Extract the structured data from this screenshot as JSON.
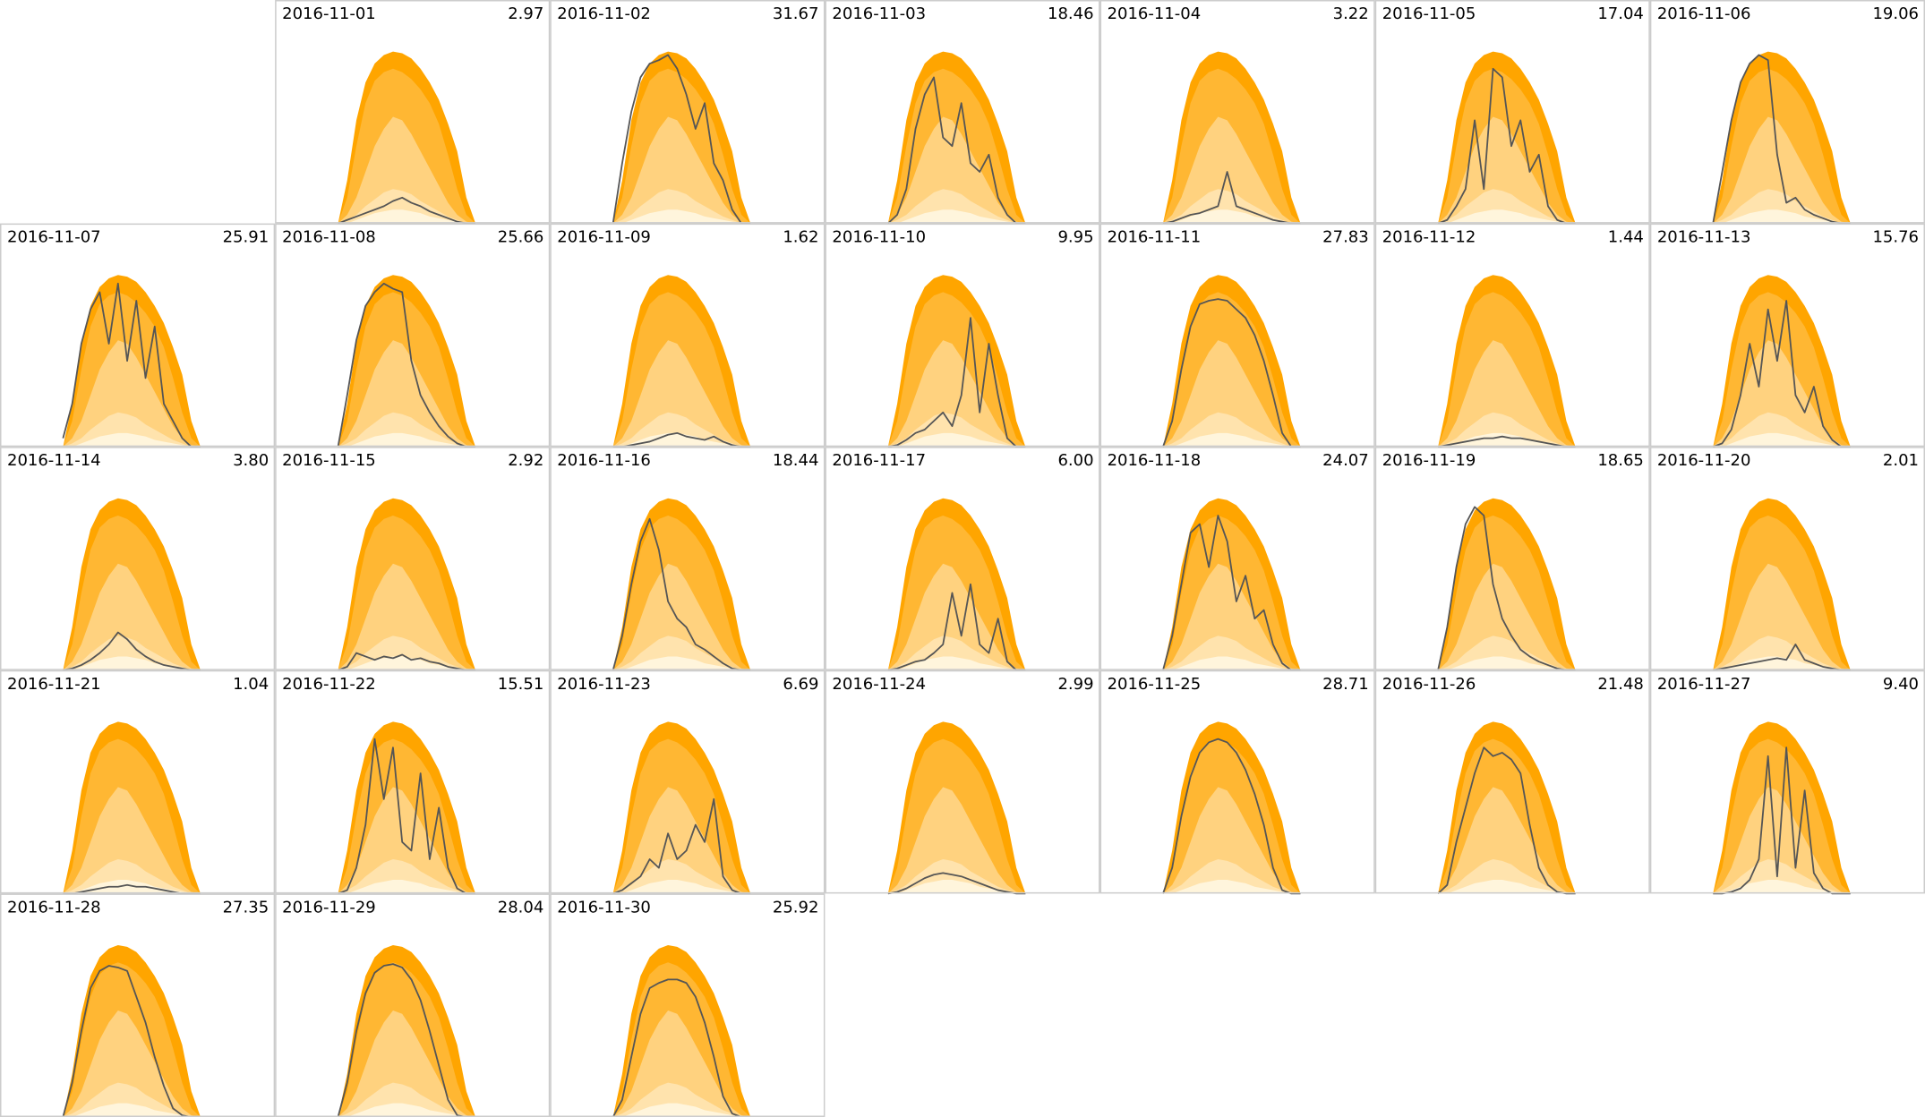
{
  "chart_data": {
    "type": "line",
    "xlim": [
      0,
      24
    ],
    "ylim": [
      0,
      1.3
    ],
    "x": [
      5.5,
      6.3,
      7.1,
      7.9,
      8.7,
      9.5,
      10.3,
      11.1,
      11.9,
      12.7,
      13.5,
      14.3,
      15.1,
      15.9,
      16.7,
      17.5
    ],
    "line_color": "#555555",
    "bands": [
      {
        "color": "#ffa500",
        "values": [
          0,
          0.25,
          0.6,
          0.82,
          0.93,
          0.98,
          1.0,
          0.99,
          0.96,
          0.9,
          0.82,
          0.72,
          0.58,
          0.42,
          0.15,
          0
        ]
      },
      {
        "color": "#ffb733",
        "values": [
          0,
          0.15,
          0.45,
          0.7,
          0.83,
          0.88,
          0.9,
          0.88,
          0.84,
          0.78,
          0.7,
          0.58,
          0.4,
          0.2,
          0.05,
          0
        ]
      },
      {
        "color": "#ffd27f",
        "values": [
          0,
          0.05,
          0.15,
          0.3,
          0.45,
          0.55,
          0.62,
          0.6,
          0.52,
          0.42,
          0.32,
          0.22,
          0.12,
          0.05,
          0.01,
          0
        ]
      },
      {
        "color": "#ffe3ad",
        "values": [
          0,
          0.02,
          0.05,
          0.1,
          0.14,
          0.18,
          0.2,
          0.19,
          0.17,
          0.13,
          0.1,
          0.07,
          0.04,
          0.02,
          0,
          0
        ]
      },
      {
        "color": "#fff5dc",
        "values": [
          0,
          0,
          0.02,
          0.04,
          0.06,
          0.07,
          0.08,
          0.08,
          0.07,
          0.06,
          0.04,
          0.03,
          0.02,
          0.01,
          0,
          0
        ]
      }
    ],
    "days": [
      {
        "date": "2016-11-01",
        "total": 2.97,
        "values": [
          0,
          0.02,
          0.04,
          0.06,
          0.08,
          0.1,
          0.13,
          0.15,
          0.12,
          0.1,
          0.07,
          0.05,
          0.03,
          0.01,
          0,
          0
        ]
      },
      {
        "date": "2016-11-02",
        "total": 31.67,
        "values": [
          0,
          0.35,
          0.65,
          0.85,
          0.93,
          0.95,
          0.98,
          0.9,
          0.75,
          0.55,
          0.7,
          0.35,
          0.25,
          0.08,
          0,
          0
        ]
      },
      {
        "date": "2016-11-03",
        "total": 18.46,
        "values": [
          0,
          0.05,
          0.2,
          0.55,
          0.75,
          0.85,
          0.5,
          0.45,
          0.7,
          0.35,
          0.3,
          0.4,
          0.15,
          0.05,
          0,
          0
        ]
      },
      {
        "date": "2016-11-04",
        "total": 3.22,
        "values": [
          0,
          0.01,
          0.03,
          0.05,
          0.06,
          0.08,
          0.1,
          0.3,
          0.1,
          0.08,
          0.06,
          0.04,
          0.02,
          0.01,
          0,
          0
        ]
      },
      {
        "date": "2016-11-05",
        "total": 17.04,
        "values": [
          0,
          0.02,
          0.1,
          0.2,
          0.6,
          0.2,
          0.9,
          0.85,
          0.45,
          0.6,
          0.3,
          0.4,
          0.1,
          0.02,
          0,
          0
        ]
      },
      {
        "date": "2016-11-06",
        "total": 19.06,
        "values": [
          0,
          0.3,
          0.6,
          0.82,
          0.93,
          0.98,
          0.95,
          0.4,
          0.12,
          0.15,
          0.08,
          0.05,
          0.03,
          0.01,
          0,
          0
        ]
      },
      {
        "date": "2016-11-07",
        "total": 25.91,
        "values": [
          0.05,
          0.25,
          0.6,
          0.8,
          0.9,
          0.6,
          0.95,
          0.5,
          0.85,
          0.4,
          0.7,
          0.25,
          0.15,
          0.05,
          0,
          0
        ]
      },
      {
        "date": "2016-11-08",
        "total": 25.66,
        "values": [
          0,
          0.3,
          0.62,
          0.82,
          0.9,
          0.95,
          0.92,
          0.9,
          0.5,
          0.3,
          0.2,
          0.12,
          0.06,
          0.02,
          0,
          0
        ]
      },
      {
        "date": "2016-11-09",
        "total": 1.62,
        "values": [
          0,
          0,
          0.01,
          0.02,
          0.03,
          0.05,
          0.07,
          0.08,
          0.06,
          0.05,
          0.04,
          0.06,
          0.03,
          0.01,
          0,
          0
        ]
      },
      {
        "date": "2016-11-10",
        "total": 9.95,
        "values": [
          0,
          0.01,
          0.04,
          0.08,
          0.1,
          0.15,
          0.2,
          0.12,
          0.3,
          0.75,
          0.2,
          0.6,
          0.3,
          0.05,
          0,
          0
        ]
      },
      {
        "date": "2016-11-11",
        "total": 27.83,
        "values": [
          0,
          0.15,
          0.45,
          0.7,
          0.83,
          0.85,
          0.86,
          0.85,
          0.8,
          0.75,
          0.65,
          0.5,
          0.3,
          0.08,
          0,
          0
        ]
      },
      {
        "date": "2016-11-12",
        "total": 1.44,
        "values": [
          0,
          0.01,
          0.02,
          0.03,
          0.04,
          0.05,
          0.05,
          0.06,
          0.05,
          0.05,
          0.04,
          0.03,
          0.02,
          0.01,
          0,
          0
        ]
      },
      {
        "date": "2016-11-13",
        "total": 15.76,
        "values": [
          0,
          0.02,
          0.1,
          0.3,
          0.6,
          0.35,
          0.8,
          0.5,
          0.85,
          0.3,
          0.2,
          0.35,
          0.12,
          0.04,
          0,
          0
        ]
      },
      {
        "date": "2016-11-14",
        "total": 3.8,
        "total_label": "3.80",
        "values": [
          0,
          0.01,
          0.03,
          0.06,
          0.1,
          0.15,
          0.22,
          0.18,
          0.12,
          0.08,
          0.05,
          0.03,
          0.02,
          0.01,
          0,
          0
        ]
      },
      {
        "date": "2016-11-15",
        "total": 2.92,
        "values": [
          0,
          0.02,
          0.1,
          0.08,
          0.06,
          0.08,
          0.07,
          0.09,
          0.06,
          0.07,
          0.05,
          0.04,
          0.02,
          0.01,
          0,
          0
        ]
      },
      {
        "date": "2016-11-16",
        "total": 18.44,
        "values": [
          0,
          0.2,
          0.5,
          0.75,
          0.88,
          0.7,
          0.4,
          0.3,
          0.25,
          0.15,
          0.12,
          0.08,
          0.04,
          0.01,
          0,
          0
        ]
      },
      {
        "date": "2016-11-17",
        "total": 6,
        "total_label": "6.00",
        "values": [
          0,
          0.01,
          0.03,
          0.05,
          0.06,
          0.1,
          0.15,
          0.45,
          0.2,
          0.5,
          0.15,
          0.1,
          0.3,
          0.05,
          0,
          0
        ]
      },
      {
        "date": "2016-11-18",
        "total": 24.07,
        "values": [
          0,
          0.2,
          0.5,
          0.8,
          0.85,
          0.6,
          0.9,
          0.75,
          0.4,
          0.55,
          0.3,
          0.35,
          0.15,
          0.04,
          0,
          0
        ]
      },
      {
        "date": "2016-11-19",
        "total": 18.65,
        "values": [
          0,
          0.25,
          0.6,
          0.85,
          0.95,
          0.9,
          0.5,
          0.3,
          0.2,
          0.12,
          0.08,
          0.05,
          0.03,
          0.01,
          0,
          0
        ]
      },
      {
        "date": "2016-11-20",
        "total": 2.01,
        "values": [
          0,
          0.01,
          0.02,
          0.03,
          0.04,
          0.05,
          0.06,
          0.07,
          0.06,
          0.15,
          0.06,
          0.04,
          0.02,
          0.01,
          0,
          0
        ]
      },
      {
        "date": "2016-11-21",
        "total": 1.04,
        "values": [
          0,
          0,
          0.01,
          0.02,
          0.03,
          0.04,
          0.04,
          0.05,
          0.04,
          0.04,
          0.03,
          0.02,
          0.01,
          0,
          0,
          0
        ]
      },
      {
        "date": "2016-11-22",
        "total": 15.51,
        "values": [
          0,
          0.02,
          0.15,
          0.4,
          0.9,
          0.55,
          0.85,
          0.3,
          0.25,
          0.7,
          0.2,
          0.5,
          0.15,
          0.03,
          0,
          0
        ]
      },
      {
        "date": "2016-11-23",
        "total": 6.69,
        "values": [
          0,
          0.02,
          0.06,
          0.1,
          0.2,
          0.15,
          0.35,
          0.2,
          0.25,
          0.4,
          0.3,
          0.55,
          0.1,
          0.02,
          0,
          0
        ]
      },
      {
        "date": "2016-11-24",
        "total": 2.99,
        "values": [
          0,
          0.01,
          0.03,
          0.06,
          0.09,
          0.11,
          0.12,
          0.11,
          0.1,
          0.08,
          0.06,
          0.04,
          0.02,
          0.01,
          0,
          0
        ]
      },
      {
        "date": "2016-11-25",
        "total": 28.71,
        "values": [
          0,
          0.15,
          0.45,
          0.68,
          0.82,
          0.88,
          0.9,
          0.88,
          0.82,
          0.72,
          0.58,
          0.4,
          0.15,
          0.02,
          0,
          0
        ]
      },
      {
        "date": "2016-11-26",
        "total": 21.48,
        "values": [
          0,
          0.05,
          0.3,
          0.5,
          0.7,
          0.85,
          0.8,
          0.82,
          0.78,
          0.7,
          0.4,
          0.15,
          0.05,
          0.01,
          0,
          0
        ]
      },
      {
        "date": "2016-11-27",
        "total": 9.4,
        "total_label": "9.40",
        "values": [
          0,
          0,
          0.01,
          0.03,
          0.08,
          0.2,
          0.8,
          0.1,
          0.85,
          0.15,
          0.6,
          0.12,
          0.03,
          0,
          0,
          0
        ]
      },
      {
        "date": "2016-11-28",
        "total": 27.35,
        "values": [
          0,
          0.2,
          0.5,
          0.75,
          0.85,
          0.88,
          0.87,
          0.85,
          0.7,
          0.55,
          0.35,
          0.18,
          0.05,
          0.01,
          0,
          0
        ]
      },
      {
        "date": "2016-11-29",
        "total": 28.04,
        "values": [
          0,
          0.2,
          0.5,
          0.72,
          0.84,
          0.88,
          0.89,
          0.87,
          0.8,
          0.68,
          0.5,
          0.3,
          0.1,
          0.01,
          0,
          0
        ]
      },
      {
        "date": "2016-11-30",
        "total": 25.92,
        "values": [
          0,
          0.1,
          0.35,
          0.6,
          0.75,
          0.78,
          0.8,
          0.8,
          0.78,
          0.7,
          0.55,
          0.35,
          0.12,
          0.02,
          0,
          0
        ]
      }
    ]
  }
}
